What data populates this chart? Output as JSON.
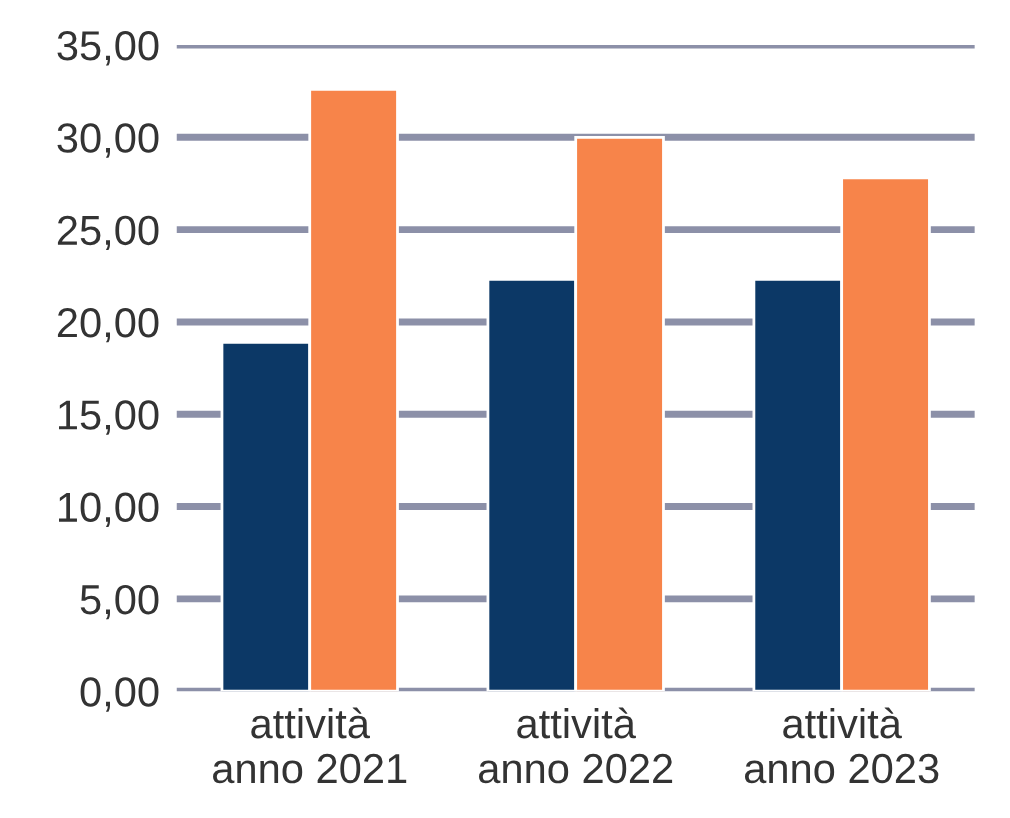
{
  "chart_data": {
    "type": "bar",
    "categories": [
      "attività\nanno 2021",
      "attività\nanno 2022",
      "attività\nanno 2023"
    ],
    "series": [
      {
        "color": "#0c3866",
        "values": [
          18.9,
          22.3,
          22.3
        ]
      },
      {
        "color": "#f7844a",
        "values": [
          32.6,
          30.0,
          27.8
        ]
      }
    ],
    "ylim": [
      0,
      35
    ],
    "yticks": [
      {
        "value": 0,
        "label": "0,00"
      },
      {
        "value": 5,
        "label": "5,00"
      },
      {
        "value": 10,
        "label": "10,00"
      },
      {
        "value": 15,
        "label": "15,00"
      },
      {
        "value": 20,
        "label": "20,00"
      },
      {
        "value": 25,
        "label": "25,00"
      },
      {
        "value": 30,
        "label": "30,00"
      },
      {
        "value": 35,
        "label": "35,00"
      }
    ],
    "grid": "y",
    "legend": false
  }
}
